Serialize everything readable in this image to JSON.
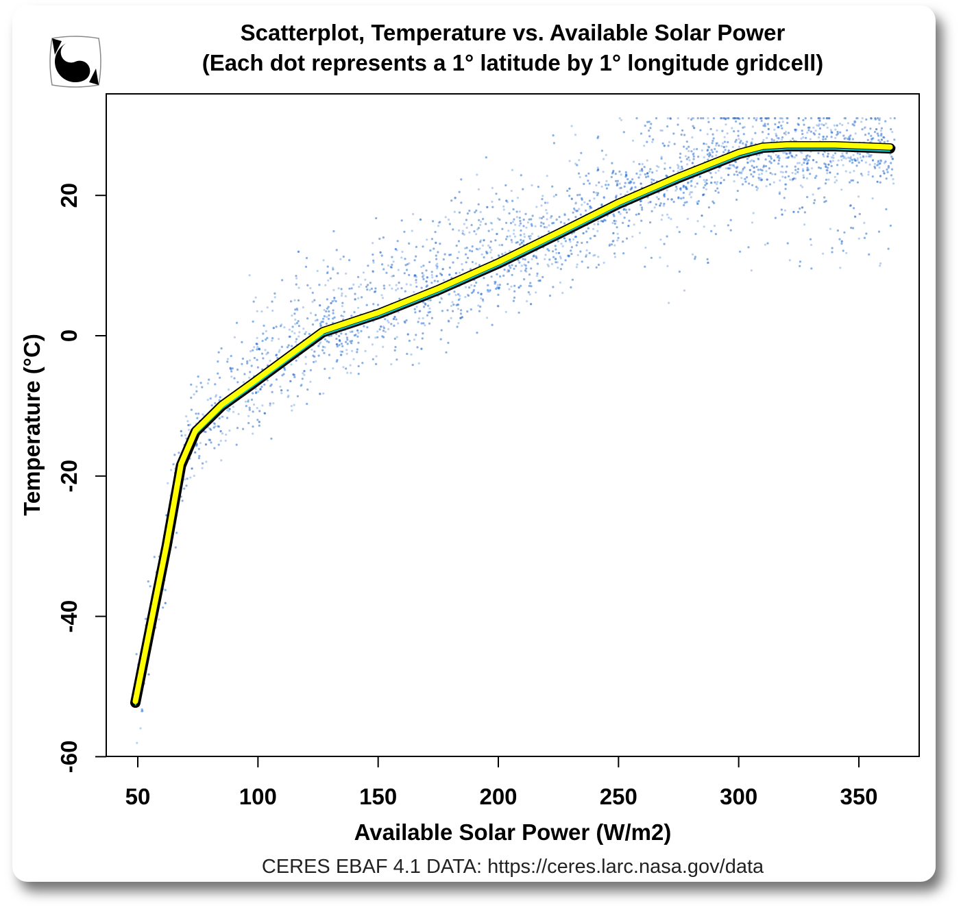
{
  "chart_data": {
    "type": "scatter",
    "title": "Scatterplot, Temperature vs. Available Solar Power",
    "subtitle": "(Each dot represents a 1° latitude by 1° longitude gridcell)",
    "xlabel": "Available Solar Power (W/m2)",
    "ylabel": "Temperature (°C)",
    "caption": "CERES EBAF 4.1 DATA: https://ceres.larc.nasa.gov/data",
    "xlim": [
      38,
      377
    ],
    "ylim": [
      -60,
      34
    ],
    "xticks": [
      "50",
      "100",
      "150",
      "200",
      "250",
      "300",
      "350"
    ],
    "yticks": [
      "-60",
      "-40",
      "-20",
      "0",
      "20"
    ],
    "grid": false,
    "point_color": "#1f66cc",
    "fit_line": {
      "color": "#ffff00",
      "outline": "#000000",
      "inner_color": "#00cccc",
      "x": [
        49,
        55,
        62,
        68,
        74,
        85,
        98,
        115,
        127,
        150,
        175,
        200,
        225,
        250,
        275,
        300,
        310,
        320,
        340,
        363
      ],
      "y": [
        -52.3,
        -42,
        -30,
        -18.5,
        -13.7,
        -10,
        -6.8,
        -2.5,
        0.5,
        3.1,
        6.5,
        10.3,
        14.5,
        18.8,
        22.5,
        25.9,
        26.8,
        27,
        27,
        26.7
      ]
    },
    "point_cloud_approx": {
      "count_drawn": 4500,
      "x_range": [
        48,
        365
      ],
      "note": "dots scattered around fit_line"
    }
  },
  "logo": {
    "name": "yin-yang-logo"
  }
}
